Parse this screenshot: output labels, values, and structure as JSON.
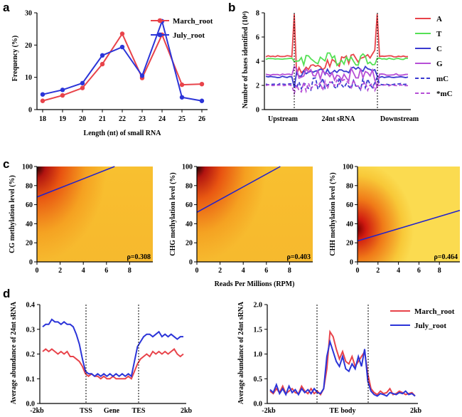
{
  "figure": {
    "panel_letters": [
      "a",
      "b",
      "c",
      "d"
    ]
  },
  "chart_data": [
    {
      "id": "a",
      "type": "line",
      "xlabel": "Length (nt) of small RNA",
      "ylabel": "Frequency (%)",
      "x": [
        18,
        19,
        20,
        21,
        22,
        23,
        24,
        25,
        26
      ],
      "xlim": [
        18,
        26
      ],
      "ylim": [
        0,
        30
      ],
      "yticks": [
        0,
        10,
        20,
        30
      ],
      "legend_position": "top-right",
      "series": [
        {
          "name": "March_root",
          "color": "#e8434a",
          "values": [
            2.7,
            4.4,
            6.7,
            14.1,
            23.5,
            9.8,
            23.2,
            7.7,
            7.9
          ]
        },
        {
          "name": "July_root",
          "color": "#2b34d8",
          "values": [
            4.7,
            6.1,
            8.2,
            16.8,
            19.4,
            10.5,
            27.4,
            3.8,
            2.7
          ]
        }
      ]
    },
    {
      "id": "b",
      "type": "line",
      "ylabel": "Number of bases identified (10⁴)",
      "ylim": [
        0,
        8
      ],
      "yticks": [
        0,
        2,
        4,
        6,
        8
      ],
      "region_labels": [
        "Upstream",
        "24nt sRNA",
        "Downstream"
      ],
      "legend_position": "right",
      "series": [
        {
          "name": "A",
          "color": "#e8434a",
          "dashed": false
        },
        {
          "name": "T",
          "color": "#55e055",
          "dashed": false
        },
        {
          "name": "C",
          "color": "#3a3ad0",
          "dashed": false
        },
        {
          "name": "G",
          "color": "#b64fd6",
          "dashed": false
        },
        {
          "name": "mC",
          "color": "#3a3ad0",
          "dashed": true
        },
        {
          "name": "*mC",
          "color": "#b64fd6",
          "dashed": true
        }
      ],
      "approx_levels": {
        "A": 4.4,
        "T": 4.2,
        "C": 2.7,
        "G": 2.9,
        "mC": 2.1,
        "*mC": 2.0
      }
    },
    {
      "id": "c",
      "type": "heatmap",
      "shared_xlabel": "Reads Per Millions (RPM)",
      "xlim": [
        0,
        10
      ],
      "xticks": [
        0,
        2,
        4,
        6,
        8
      ],
      "ylim": [
        0,
        100
      ],
      "yticks": [
        0,
        20,
        40,
        60,
        80,
        100
      ],
      "subplots": [
        {
          "ylabel": "CG methylation level (%)",
          "rho": "ρ=0.308",
          "fit": [
            [
              0,
              68
            ],
            [
              6.7,
              100
            ]
          ]
        },
        {
          "ylabel": "CHG methylation level (%)",
          "rho": "ρ=0.403",
          "fit": [
            [
              0,
              52
            ],
            [
              7.2,
              100
            ]
          ]
        },
        {
          "ylabel": "CHH methylation level (%)",
          "rho": "ρ=0.464",
          "fit": [
            [
              0,
              22
            ],
            [
              10,
              54
            ]
          ]
        }
      ]
    },
    {
      "id": "d",
      "type": "line",
      "ylabel": "Average abundance of 24nt sRNA",
      "legend_position": "top-right",
      "series_names": [
        "March_root",
        "July_root"
      ],
      "subplots": [
        {
          "ylim": [
            0,
            0.4
          ],
          "yticks": [
            "0.0",
            "0.1",
            "0.2",
            "0.3",
            "0.4"
          ],
          "region_labels": [
            "-2kb",
            "TSS",
            "Gene",
            "TES",
            "2kb"
          ],
          "series": [
            {
              "name": "March_root",
              "color": "#e8434a",
              "values": [
                0.21,
                0.22,
                0.21,
                0.22,
                0.21,
                0.2,
                0.21,
                0.2,
                0.21,
                0.19,
                0.19,
                0.18,
                0.17,
                0.15,
                0.12,
                0.11,
                0.12,
                0.11,
                0.11,
                0.1,
                0.11,
                0.1,
                0.1,
                0.11,
                0.1,
                0.1,
                0.1,
                0.1,
                0.11,
                0.1,
                0.13,
                0.16,
                0.18,
                0.19,
                0.2,
                0.19,
                0.21,
                0.2,
                0.21,
                0.2,
                0.21,
                0.2,
                0.21,
                0.22,
                0.2,
                0.19,
                0.2
              ]
            },
            {
              "name": "July_root",
              "color": "#2b34d8",
              "values": [
                0.31,
                0.32,
                0.32,
                0.34,
                0.33,
                0.33,
                0.32,
                0.33,
                0.32,
                0.32,
                0.31,
                0.28,
                0.24,
                0.18,
                0.13,
                0.12,
                0.12,
                0.11,
                0.12,
                0.11,
                0.12,
                0.11,
                0.12,
                0.11,
                0.12,
                0.11,
                0.12,
                0.11,
                0.12,
                0.11,
                0.17,
                0.23,
                0.25,
                0.27,
                0.28,
                0.28,
                0.27,
                0.28,
                0.29,
                0.27,
                0.28,
                0.27,
                0.28,
                0.27,
                0.26,
                0.27,
                0.27
              ]
            }
          ]
        },
        {
          "ylim": [
            0,
            2.0
          ],
          "yticks": [
            "0.0",
            "0.5",
            "1.0",
            "1.5",
            "2.0"
          ],
          "region_labels": [
            "-2kb",
            "TE body",
            "2kb"
          ],
          "series": [
            {
              "name": "March_root",
              "color": "#e8434a",
              "values": [
                0.25,
                0.2,
                0.3,
                0.22,
                0.35,
                0.2,
                0.25,
                0.3,
                0.22,
                0.2,
                0.35,
                0.25,
                0.2,
                0.3,
                0.2,
                0.25,
                0.18,
                0.3,
                0.7,
                1.45,
                1.35,
                1.1,
                0.9,
                1.05,
                0.85,
                0.8,
                0.95,
                0.75,
                0.85,
                0.95,
                1.05,
                0.6,
                0.3,
                0.22,
                0.18,
                0.25,
                0.2,
                0.22,
                0.3,
                0.18,
                0.2,
                0.25,
                0.22,
                0.18,
                0.2,
                0.22,
                0.15
              ]
            },
            {
              "name": "July_root",
              "color": "#2b34d8",
              "values": [
                0.28,
                0.22,
                0.38,
                0.2,
                0.3,
                0.18,
                0.35,
                0.22,
                0.28,
                0.18,
                0.3,
                0.22,
                0.28,
                0.2,
                0.3,
                0.22,
                0.2,
                0.3,
                0.95,
                1.25,
                1.05,
                0.85,
                0.75,
                0.95,
                0.7,
                0.65,
                0.8,
                0.7,
                0.95,
                0.75,
                1.1,
                0.45,
                0.25,
                0.18,
                0.15,
                0.2,
                0.18,
                0.15,
                0.22,
                0.2,
                0.18,
                0.22,
                0.2,
                0.25,
                0.18,
                0.2,
                0.15
              ]
            }
          ]
        }
      ]
    }
  ]
}
